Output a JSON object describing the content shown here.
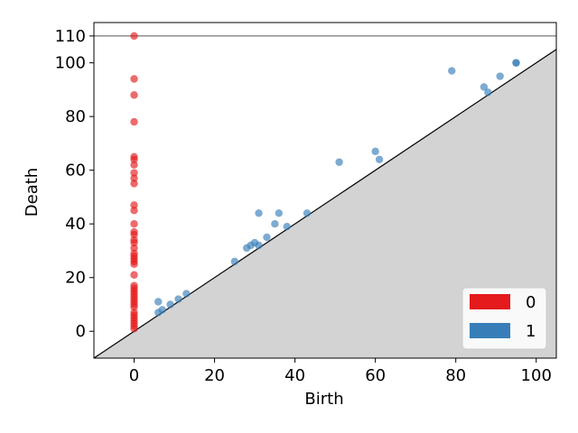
{
  "chart_data": {
    "type": "scatter",
    "title": "",
    "xlabel": "Birth",
    "ylabel": "Death",
    "xlim": [
      -10,
      105
    ],
    "ylim": [
      -10,
      115
    ],
    "xticks": [
      0,
      20,
      40,
      60,
      80,
      100
    ],
    "yticks": [
      0,
      20,
      40,
      60,
      80,
      100,
      110
    ],
    "infinity_line": 110,
    "diagonal": true,
    "grid": false,
    "legend_position": "bottom-right",
    "series": [
      {
        "name": "0",
        "color": "#e41a1c",
        "points": [
          [
            0,
            110
          ],
          [
            0,
            94
          ],
          [
            0,
            88
          ],
          [
            0,
            78
          ],
          [
            0,
            65
          ],
          [
            0,
            64
          ],
          [
            0,
            62
          ],
          [
            0,
            59
          ],
          [
            0,
            57
          ],
          [
            0,
            55
          ],
          [
            0,
            47
          ],
          [
            0,
            45
          ],
          [
            0,
            40
          ],
          [
            0,
            37
          ],
          [
            0,
            36
          ],
          [
            0,
            34
          ],
          [
            0,
            33
          ],
          [
            0,
            31
          ],
          [
            0,
            29
          ],
          [
            0,
            28
          ],
          [
            0,
            27
          ],
          [
            0,
            26
          ],
          [
            0,
            25
          ],
          [
            0,
            21
          ],
          [
            0,
            17
          ],
          [
            0,
            16
          ],
          [
            0,
            15
          ],
          [
            0,
            14
          ],
          [
            0,
            13
          ],
          [
            0,
            12
          ],
          [
            0,
            11
          ],
          [
            0,
            10
          ],
          [
            0,
            9
          ],
          [
            0,
            7
          ],
          [
            0,
            6
          ],
          [
            0,
            5
          ],
          [
            0,
            4
          ],
          [
            0,
            3
          ],
          [
            0,
            2
          ],
          [
            0,
            1
          ]
        ]
      },
      {
        "name": "1",
        "color": "#377eb8",
        "points": [
          [
            6,
            11
          ],
          [
            6,
            7
          ],
          [
            7,
            8
          ],
          [
            9,
            10
          ],
          [
            11,
            12
          ],
          [
            13,
            14
          ],
          [
            25,
            26
          ],
          [
            28,
            31
          ],
          [
            29,
            32
          ],
          [
            30,
            33
          ],
          [
            31,
            32
          ],
          [
            31,
            44
          ],
          [
            33,
            35
          ],
          [
            35,
            40
          ],
          [
            36,
            44
          ],
          [
            38,
            39
          ],
          [
            43,
            44
          ],
          [
            51,
            63
          ],
          [
            60,
            67
          ],
          [
            61,
            64
          ],
          [
            79,
            97
          ],
          [
            87,
            91
          ],
          [
            88,
            89
          ],
          [
            91,
            95
          ],
          [
            95,
            100
          ],
          [
            95,
            100
          ]
        ]
      }
    ]
  }
}
